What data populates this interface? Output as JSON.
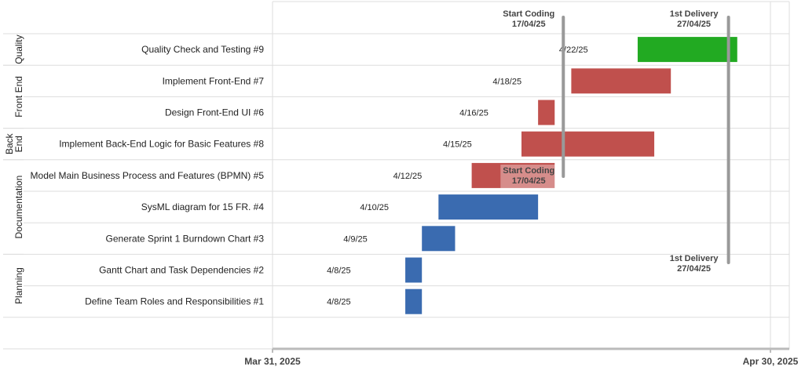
{
  "chart_data": {
    "type": "gantt",
    "x_axis": {
      "ticks": [
        "Mar 31, 2025",
        "Apr 30, 2025"
      ]
    },
    "groups": [
      {
        "label": "Quality",
        "tasks": [
          0
        ]
      },
      {
        "label": "Front End",
        "tasks": [
          1,
          2
        ]
      },
      {
        "label": "Back\nEnd",
        "tasks": [
          3
        ]
      },
      {
        "label": "Documentation",
        "tasks": [
          4,
          5,
          6
        ]
      },
      {
        "label": "Planning",
        "tasks": [
          7,
          8
        ]
      }
    ],
    "tasks": [
      {
        "name": "Quality Check and Testing #9",
        "date_label": "4/22/25",
        "start": "2025-04-22",
        "end": "2025-04-28",
        "color": "#22aa22"
      },
      {
        "name": "Implement Front-End #7",
        "date_label": "4/18/25",
        "start": "2025-04-18",
        "end": "2025-04-24",
        "color": "#c0504d"
      },
      {
        "name": "Design Front-End UI #6",
        "date_label": "4/16/25",
        "start": "2025-04-16",
        "end": "2025-04-17",
        "color": "#c0504d"
      },
      {
        "name": "Implement Back-End Logic for Basic Features #8",
        "date_label": "4/15/25",
        "start": "2025-04-15",
        "end": "2025-04-23",
        "color": "#c0504d"
      },
      {
        "name": "Model Main Business Process and Features (BPMN) #5",
        "date_label": "4/12/25",
        "start": "2025-04-12",
        "end": "2025-04-17",
        "color": "#c0504d"
      },
      {
        "name": "SysML diagram for 15 FR. #4",
        "date_label": "4/10/25",
        "start": "2025-04-10",
        "end": "2025-04-16",
        "color": "#3a6bb0"
      },
      {
        "name": "Generate Sprint 1 Burndown Chart #3",
        "date_label": "4/9/25",
        "start": "2025-04-09",
        "end": "2025-04-11",
        "color": "#3a6bb0"
      },
      {
        "name": "Gantt Chart and Task Dependencies #2",
        "date_label": "4/8/25",
        "start": "2025-04-08",
        "end": "2025-04-09",
        "color": "#3a6bb0"
      },
      {
        "name": "Define Team Roles and Responsibilities #1",
        "date_label": "4/8/25",
        "start": "2025-04-08",
        "end": "2025-04-09",
        "color": "#3a6bb0"
      }
    ],
    "milestones": [
      {
        "title": "Start Coding",
        "date_text": "17/04/25",
        "date": "2025-04-17"
      },
      {
        "title": "1st Delivery",
        "date_text": "27/04/25",
        "date": "2025-04-27"
      }
    ],
    "colors": {
      "grid": "#dddddd",
      "axis": "#bbbbbb",
      "milestone": "#999999"
    }
  }
}
